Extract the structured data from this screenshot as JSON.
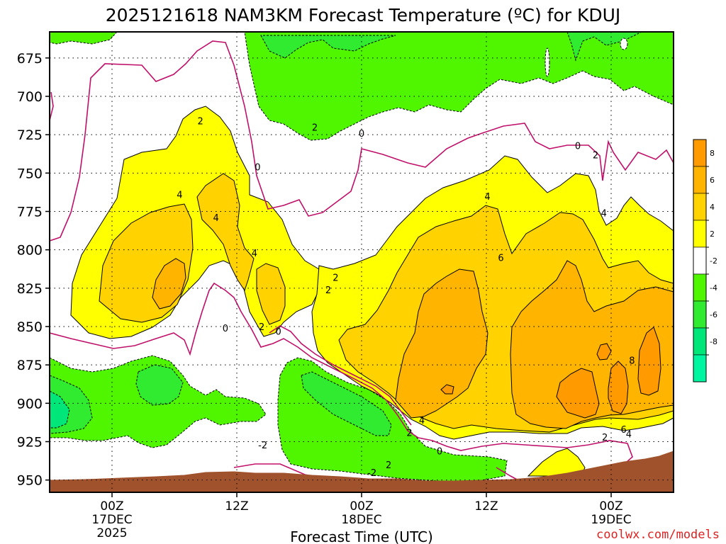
{
  "chart_data": {
    "type": "heatmap",
    "title": "2025121618 NAM3KM Forecast Temperature (ºC) for KDUJ",
    "xlabel": "Forecast Time (UTC)",
    "ylabel": "",
    "y_axis": {
      "label": "",
      "ticks": [
        675,
        700,
        725,
        750,
        775,
        800,
        825,
        850,
        875,
        900,
        925,
        950
      ],
      "range": [
        958,
        658
      ],
      "inverted": true
    },
    "x_axis": {
      "ticks": [
        {
          "label": "00Z",
          "sub1": "17DEC",
          "sub2": "2025",
          "hour": 6
        },
        {
          "label": "12Z",
          "sub1": "",
          "sub2": "",
          "hour": 18
        },
        {
          "label": "00Z",
          "sub1": "18DEC",
          "sub2": "",
          "hour": 30
        },
        {
          "label": "12Z",
          "sub1": "",
          "sub2": "",
          "hour": 42
        },
        {
          "label": "00Z",
          "sub1": "19DEC",
          "sub2": "",
          "hour": 54
        }
      ],
      "range": [
        0,
        60
      ]
    },
    "grid": true,
    "colorbar": {
      "position": "right",
      "bins": [
        {
          "range": [
            8,
            10
          ],
          "color": "#ff9b00"
        },
        {
          "range": [
            6,
            8
          ],
          "color": "#ffb400"
        },
        {
          "range": [
            4,
            6
          ],
          "color": "#ffd200"
        },
        {
          "range": [
            2,
            4
          ],
          "color": "#ffff00"
        },
        {
          "range": [
            -2,
            2
          ],
          "color": "#ffffff"
        },
        {
          "range": [
            -4,
            -2
          ],
          "color": "#50f500"
        },
        {
          "range": [
            -6,
            -4
          ],
          "color": "#30eb30"
        },
        {
          "range": [
            -8,
            -6
          ],
          "color": "#00e678"
        },
        {
          "range": [
            -10,
            -8
          ],
          "color": "#00f5a0"
        }
      ],
      "labels": [
        "8",
        "6",
        "4",
        "2",
        "-2",
        "-4",
        "-6",
        "-8"
      ]
    },
    "contour_labels": [
      {
        "text": "2",
        "hour": 14.5,
        "p": 716
      },
      {
        "text": "4",
        "hour": 12.5,
        "p": 764
      },
      {
        "text": "4",
        "hour": 16,
        "p": 779
      },
      {
        "text": "4",
        "hour": 19.7,
        "p": 802
      },
      {
        "text": "0",
        "hour": 20,
        "p": 746
      },
      {
        "text": "2",
        "hour": 25.5,
        "p": 720
      },
      {
        "text": "0",
        "hour": 30,
        "p": 724
      },
      {
        "text": "2",
        "hour": 20.4,
        "p": 850
      },
      {
        "text": "0",
        "hour": 16.9,
        "p": 851
      },
      {
        "text": "0",
        "hour": 22,
        "p": 853
      },
      {
        "text": "2",
        "hour": 26.8,
        "p": 826
      },
      {
        "text": "2",
        "hour": 27.5,
        "p": 818
      },
      {
        "text": "2",
        "hour": 32.6,
        "p": 940
      },
      {
        "text": "4",
        "hour": 42.1,
        "p": 765
      },
      {
        "text": "6",
        "hour": 43.4,
        "p": 805
      },
      {
        "text": "4",
        "hour": 35.8,
        "p": 911
      },
      {
        "text": "2",
        "hour": 34.6,
        "p": 919
      },
      {
        "text": "0",
        "hour": 37.5,
        "p": 931
      },
      {
        "text": "0",
        "hour": 50.8,
        "p": 732
      },
      {
        "text": "2",
        "hour": 52.5,
        "p": 738
      },
      {
        "text": "4",
        "hour": 53.3,
        "p": 776
      },
      {
        "text": "8",
        "hour": 56,
        "p": 872
      },
      {
        "text": "6",
        "hour": 55.2,
        "p": 917
      },
      {
        "text": "4",
        "hour": 55.7,
        "p": 920
      },
      {
        "text": "2",
        "hour": 53.4,
        "p": 922
      },
      {
        "text": "-2",
        "hour": 20.5,
        "p": 927
      },
      {
        "text": "-2",
        "hour": 31,
        "p": 945
      }
    ]
  },
  "credit": "coolwx.com/models",
  "colors": {
    "terrain": "#a0522d",
    "contour_zero": "#c0106a",
    "frame": "#000000",
    "credit": "#dd2222"
  }
}
